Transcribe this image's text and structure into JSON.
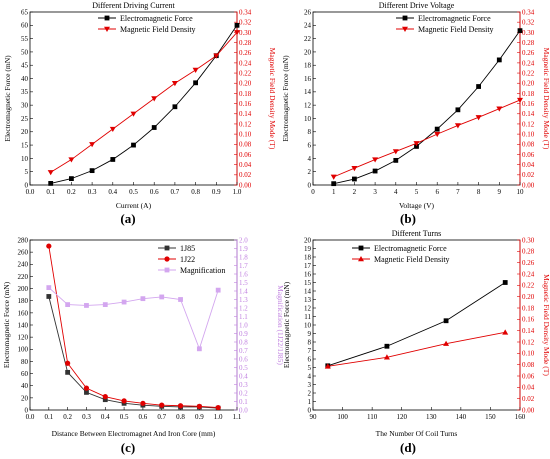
{
  "chart_data": [
    {
      "id": "a",
      "type": "line",
      "panel_label": "(a)",
      "title": "Different Driving Current",
      "xlabel": "Current (A)",
      "ylabel": "Electromagnetic Force (mN)",
      "y2label": "Magnetic Field Density Mode (T)",
      "xlim": [
        0,
        1.0
      ],
      "ylim": [
        0,
        65
      ],
      "y2lim": [
        0,
        0.34
      ],
      "xticks": [
        0.0,
        0.1,
        0.2,
        0.3,
        0.4,
        0.5,
        0.6,
        0.7,
        0.8,
        0.9,
        1.0
      ],
      "yticks": [
        0,
        5,
        10,
        15,
        20,
        25,
        30,
        35,
        40,
        45,
        50,
        55,
        60,
        65
      ],
      "y2ticks": [
        0.0,
        0.02,
        0.04,
        0.06,
        0.08,
        0.1,
        0.12,
        0.14,
        0.16,
        0.18,
        0.2,
        0.22,
        0.24,
        0.26,
        0.28,
        0.3,
        0.32,
        0.34
      ],
      "right_axis_color": "#e00000",
      "legend_position": "top-left",
      "series": [
        {
          "name": "Electromagnetic Force",
          "axis": "left",
          "color": "#000000",
          "marker": "square",
          "x": [
            0.1,
            0.2,
            0.3,
            0.4,
            0.5,
            0.6,
            0.7,
            0.8,
            0.9,
            1.0
          ],
          "y": [
            0.6,
            2.4,
            5.4,
            9.6,
            15.0,
            21.6,
            29.4,
            38.4,
            48.6,
            60.0
          ]
        },
        {
          "name": "Magnetic Field Density",
          "axis": "right",
          "color": "#e00000",
          "marker": "triangle-down",
          "x": [
            0.1,
            0.2,
            0.3,
            0.4,
            0.5,
            0.6,
            0.7,
            0.8,
            0.9,
            1.0
          ],
          "y": [
            0.025,
            0.05,
            0.08,
            0.11,
            0.14,
            0.17,
            0.2,
            0.226,
            0.254,
            0.3
          ]
        }
      ]
    },
    {
      "id": "b",
      "type": "line",
      "panel_label": "(b)",
      "title": "Different Drive Voltage",
      "xlabel": "Voltage (V)",
      "ylabel": "Electromagnetic Force (mN)",
      "y2label": "Magnetic Field Density Mode (T)",
      "xlim": [
        0,
        10
      ],
      "ylim": [
        0,
        26
      ],
      "y2lim": [
        0,
        0.34
      ],
      "xticks": [
        0,
        1,
        2,
        3,
        4,
        5,
        6,
        7,
        8,
        9,
        10
      ],
      "yticks": [
        0,
        2,
        4,
        6,
        8,
        10,
        12,
        14,
        16,
        18,
        20,
        22,
        24,
        26
      ],
      "y2ticks": [
        0.0,
        0.02,
        0.04,
        0.06,
        0.08,
        0.1,
        0.12,
        0.14,
        0.16,
        0.18,
        0.2,
        0.22,
        0.24,
        0.26,
        0.28,
        0.3,
        0.32,
        0.34
      ],
      "right_axis_color": "#e00000",
      "legend_position": "top-right",
      "series": [
        {
          "name": "Electromagnetic Force",
          "axis": "left",
          "color": "#000000",
          "marker": "square",
          "x": [
            1,
            2,
            3,
            4,
            5,
            6,
            7,
            8,
            9,
            10
          ],
          "y": [
            0.2,
            0.9,
            2.1,
            3.7,
            5.8,
            8.4,
            11.3,
            14.8,
            18.8,
            23.2
          ]
        },
        {
          "name": "Magnetic Field Density",
          "axis": "right",
          "color": "#e00000",
          "marker": "triangle-down",
          "x": [
            1,
            2,
            3,
            4,
            5,
            6,
            7,
            8,
            9,
            10
          ],
          "y": [
            0.016,
            0.033,
            0.05,
            0.066,
            0.082,
            0.1,
            0.117,
            0.133,
            0.15,
            0.167
          ]
        }
      ]
    },
    {
      "id": "c",
      "type": "line",
      "panel_label": "(c)",
      "title": "",
      "xlabel": "Distance Between Electromagnet And Iron Core (mm)",
      "ylabel": "Electromagnetic Force (mN)",
      "y2label": "Magnification (1J22/1J85)",
      "xlim": [
        0,
        1.1
      ],
      "ylim": [
        0,
        280
      ],
      "y2lim": [
        0,
        2.0
      ],
      "xticks": [
        0.0,
        0.1,
        0.2,
        0.3,
        0.4,
        0.5,
        0.6,
        0.7,
        0.8,
        0.9,
        1.0,
        1.1
      ],
      "yticks": [
        0,
        20,
        40,
        60,
        80,
        100,
        120,
        140,
        160,
        180,
        200,
        220,
        240,
        260,
        280
      ],
      "y2ticks": [
        0.0,
        0.1,
        0.2,
        0.3,
        0.4,
        0.5,
        0.6,
        0.7,
        0.8,
        0.9,
        1.0,
        1.1,
        1.2,
        1.3,
        1.4,
        1.5,
        1.6,
        1.7,
        1.8,
        1.9,
        2.0
      ],
      "right_axis_color": "#c080e0",
      "legend_position": "top-right",
      "series": [
        {
          "name": "1J85",
          "axis": "left",
          "color": "#333333",
          "marker": "square",
          "x": [
            0.1,
            0.2,
            0.3,
            0.4,
            0.5,
            0.6,
            0.7,
            0.8,
            0.9,
            1.0
          ],
          "y": [
            187,
            62,
            29,
            17,
            11,
            8,
            6,
            5,
            5,
            3
          ]
        },
        {
          "name": "1J22",
          "axis": "left",
          "color": "#e00000",
          "marker": "circle",
          "x": [
            0.1,
            0.2,
            0.3,
            0.4,
            0.5,
            0.6,
            0.7,
            0.8,
            0.9,
            1.0
          ],
          "y": [
            270,
            77,
            36,
            22,
            15,
            11,
            8,
            7,
            6,
            4
          ]
        },
        {
          "name": "Magnification",
          "axis": "right",
          "color": "#d3a6ef",
          "marker": "square",
          "x": [
            0.1,
            0.2,
            0.3,
            0.4,
            0.5,
            0.6,
            0.7,
            0.8,
            0.9,
            1.0
          ],
          "y": [
            1.44,
            1.24,
            1.23,
            1.24,
            1.27,
            1.31,
            1.33,
            1.3,
            0.72,
            1.41
          ]
        }
      ]
    },
    {
      "id": "d",
      "type": "line",
      "panel_label": "(d)",
      "title": "Different Turns",
      "xlabel": "The Number Of Coil Turns",
      "ylabel": "Electromagnetic Force (mN)",
      "y2label": "Magnetic Field Density Mode (T)",
      "xlim": [
        90,
        160
      ],
      "ylim": [
        0,
        20
      ],
      "y2lim": [
        0,
        0.3
      ],
      "xticks": [
        90,
        100,
        110,
        120,
        130,
        140,
        150,
        160
      ],
      "yticks": [
        0,
        1,
        2,
        3,
        4,
        5,
        6,
        7,
        8,
        9,
        10,
        11,
        12,
        13,
        14,
        15,
        16,
        17,
        18,
        19,
        20
      ],
      "y2ticks": [
        0.0,
        0.02,
        0.04,
        0.06,
        0.08,
        0.1,
        0.12,
        0.14,
        0.16,
        0.18,
        0.2,
        0.22,
        0.24,
        0.26,
        0.28,
        0.3
      ],
      "right_axis_color": "#e00000",
      "legend_position": "top-left",
      "series": [
        {
          "name": "Electromagnetic Force",
          "axis": "left",
          "color": "#000000",
          "marker": "square",
          "x": [
            95,
            115,
            135,
            155
          ],
          "y": [
            5.2,
            7.5,
            10.5,
            15.0
          ]
        },
        {
          "name": "Magnetic Field Density",
          "axis": "right",
          "color": "#e00000",
          "marker": "triangle-up",
          "x": [
            95,
            115,
            135,
            155
          ],
          "y": [
            0.077,
            0.093,
            0.117,
            0.137
          ]
        }
      ]
    }
  ]
}
